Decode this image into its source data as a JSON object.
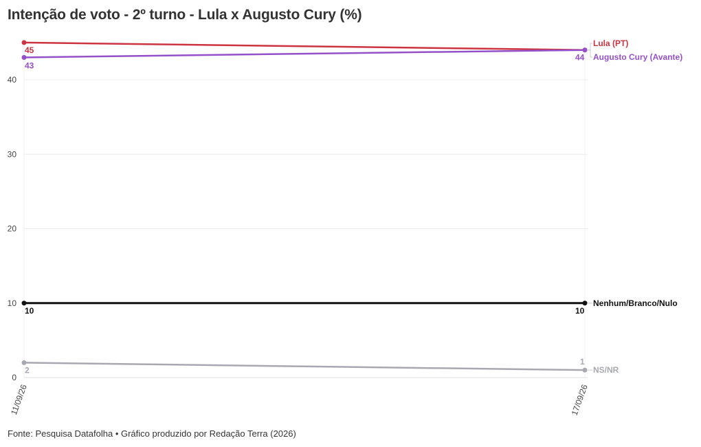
{
  "chart_data": {
    "type": "line",
    "title": "Intenção de voto - 2º turno - Lula x Augusto Cury (%)",
    "x": [
      "11/09/26",
      "17/09/26"
    ],
    "ylim": [
      0,
      45
    ],
    "yticks": [
      0,
      10,
      20,
      30,
      40
    ],
    "grid": true,
    "legend": "right-end labels",
    "series": [
      {
        "name": "Lula (PT)",
        "values": [
          45,
          44
        ],
        "labels": [
          "45",
          ""
        ],
        "color": "#cc3340"
      },
      {
        "name": "Augusto Cury (Avante)",
        "values": [
          43,
          44
        ],
        "labels": [
          "43",
          "44"
        ],
        "color": "#9450c8"
      },
      {
        "name": "Nenhum/Branco/Nulo",
        "values": [
          10,
          10
        ],
        "labels": [
          "10",
          "10"
        ],
        "color": "#111111"
      },
      {
        "name": "NS/NR",
        "values": [
          2,
          1
        ],
        "labels": [
          "2",
          "1"
        ],
        "color": "#a8a8b0"
      }
    ]
  },
  "footer": "Fonte: Pesquisa Datafolha • Gráfico produzido por Redação Terra (2026)"
}
